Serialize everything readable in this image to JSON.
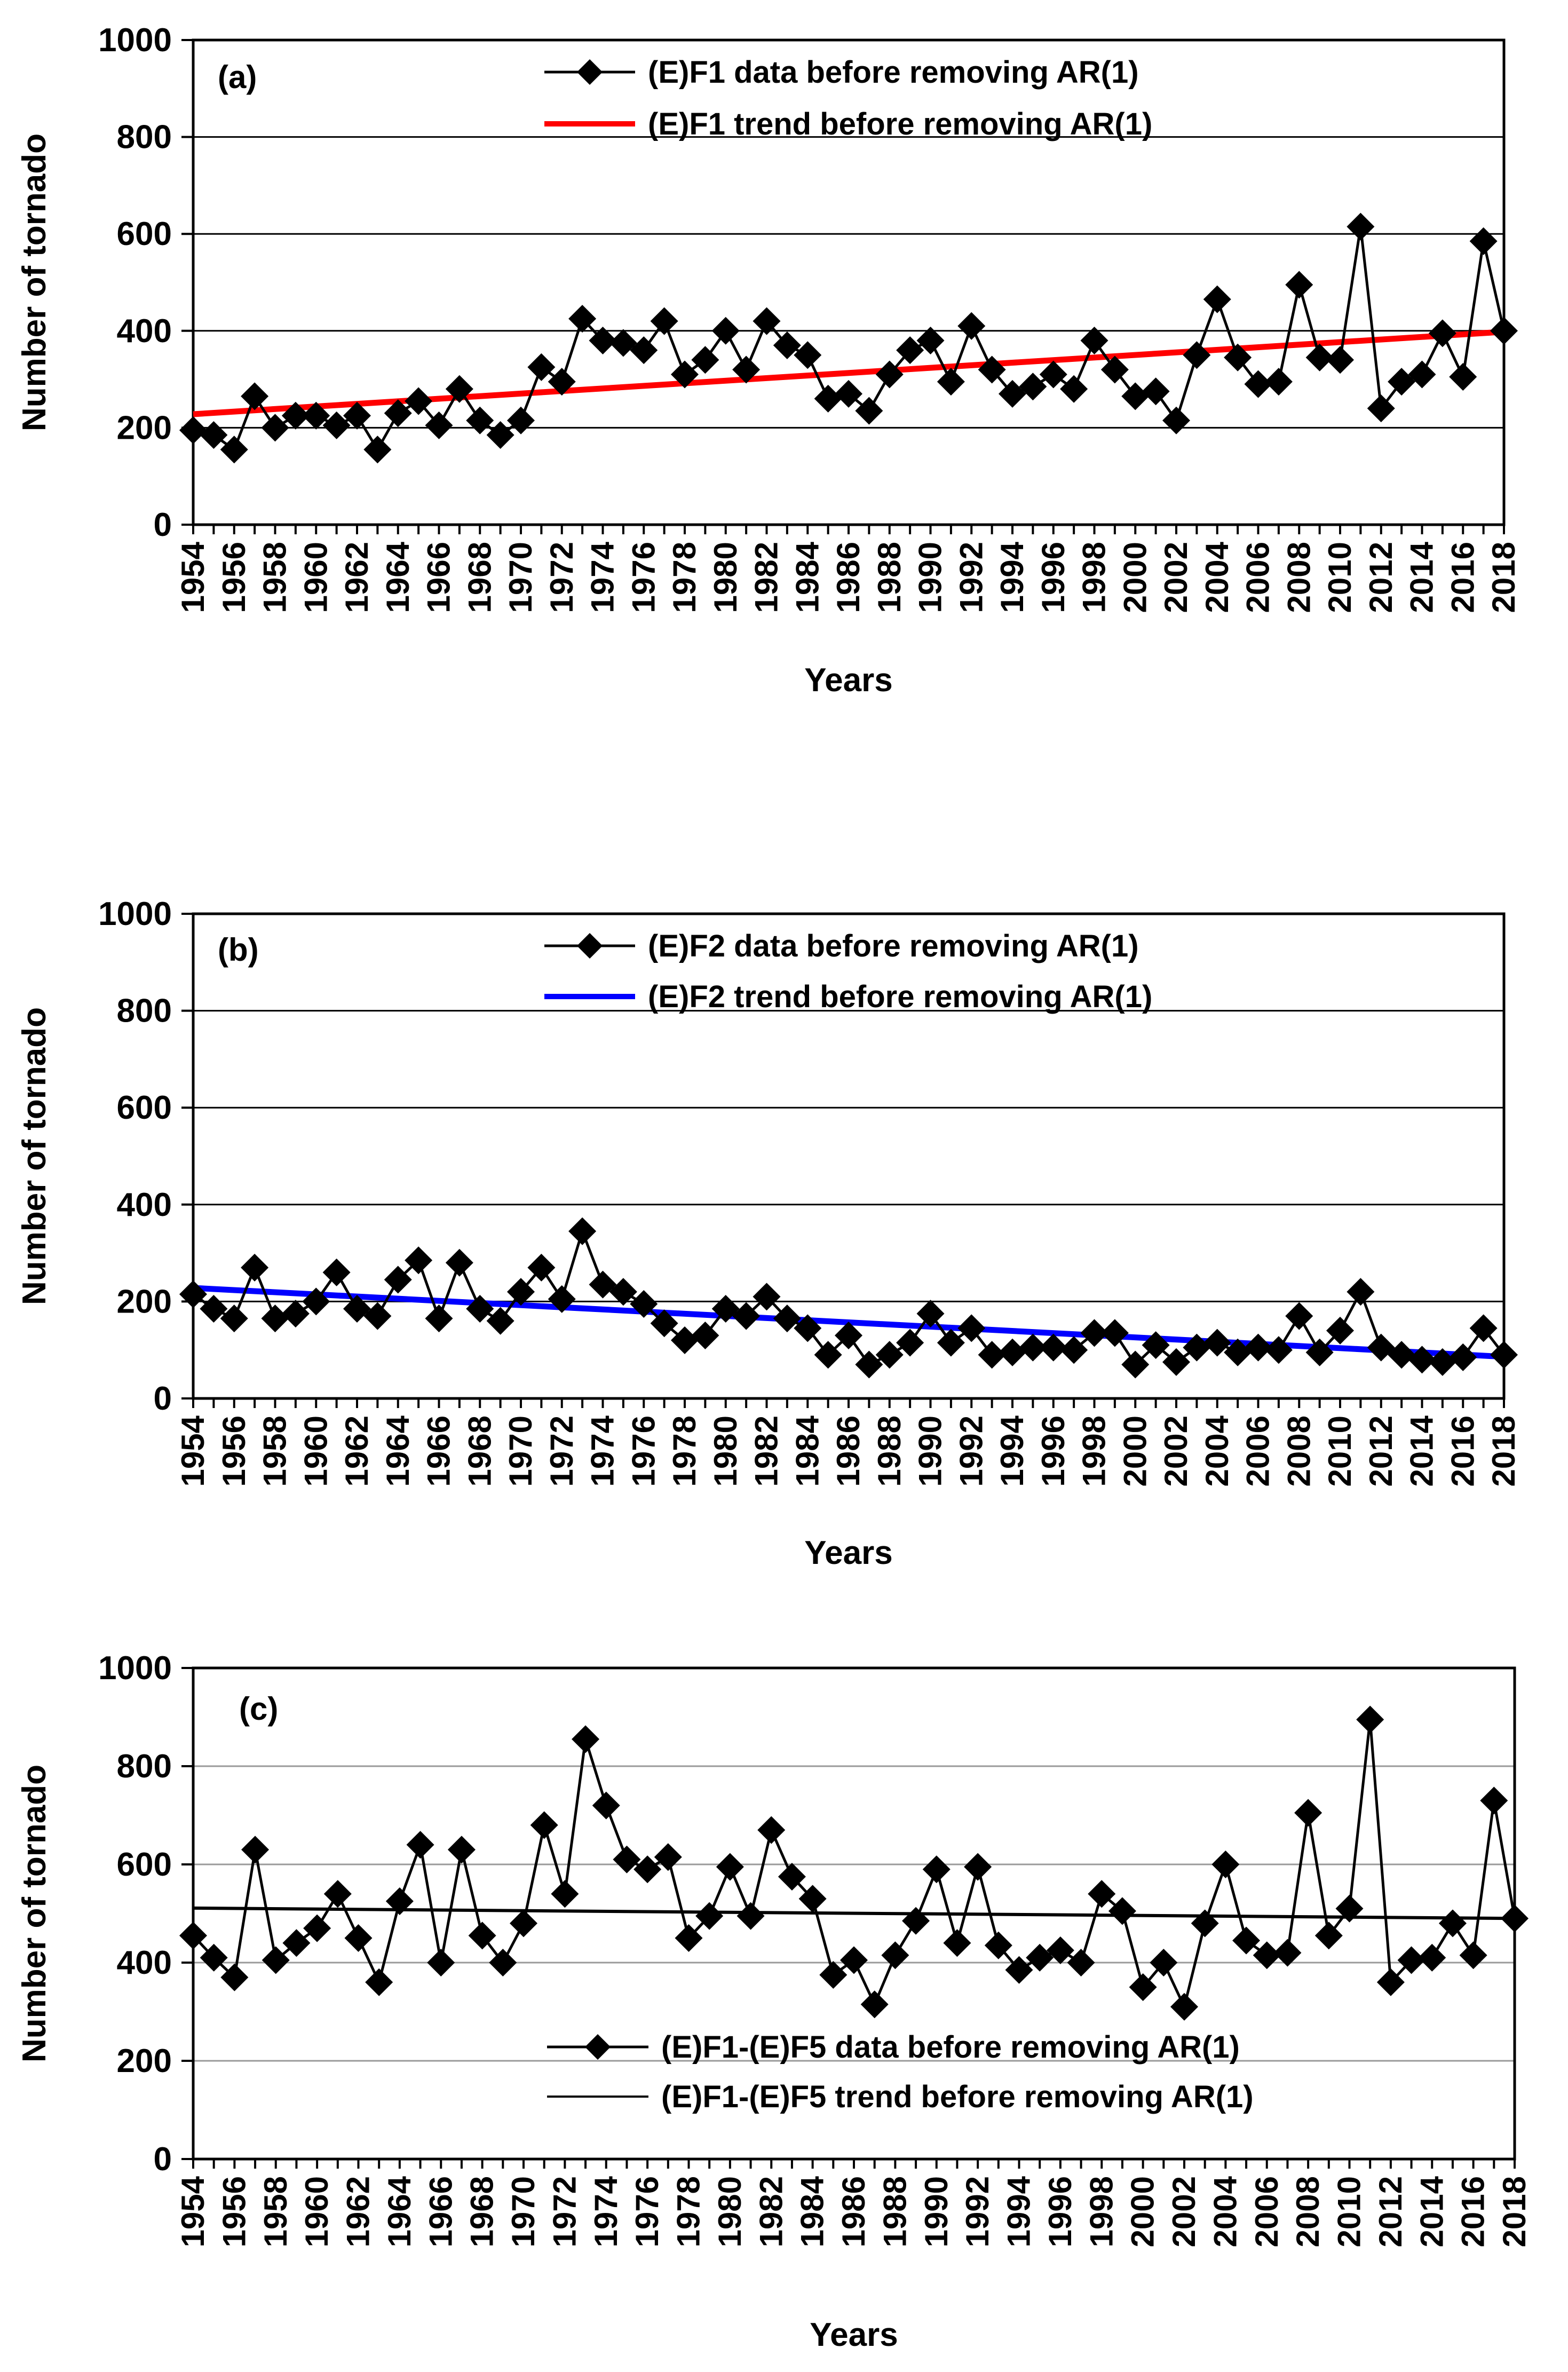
{
  "chart_data": [
    {
      "type": "line",
      "panel_label": "(a)",
      "xlabel": "Years",
      "ylabel": "Number of tornado",
      "ylim": [
        0,
        1000
      ],
      "yticks": [
        0,
        200,
        400,
        600,
        800,
        1000
      ],
      "legend_position": "top-center",
      "x": [
        1954,
        1955,
        1956,
        1957,
        1958,
        1959,
        1960,
        1961,
        1962,
        1963,
        1964,
        1965,
        1966,
        1967,
        1968,
        1969,
        1970,
        1971,
        1972,
        1973,
        1974,
        1975,
        1976,
        1977,
        1978,
        1979,
        1980,
        1981,
        1982,
        1983,
        1984,
        1985,
        1986,
        1987,
        1988,
        1989,
        1990,
        1991,
        1992,
        1993,
        1994,
        1995,
        1996,
        1997,
        1998,
        1999,
        2000,
        2001,
        2002,
        2003,
        2004,
        2005,
        2006,
        2007,
        2008,
        2009,
        2010,
        2011,
        2012,
        2013,
        2014,
        2015,
        2016,
        2017,
        2018
      ],
      "xticks": [
        "1954",
        "1956",
        "1958",
        "1960",
        "1962",
        "1964",
        "1966",
        "1968",
        "1970",
        "1972",
        "1974",
        "1976",
        "1978",
        "1980",
        "1982",
        "1984",
        "1986",
        "1988",
        "1990",
        "1992",
        "1994",
        "1996",
        "1998",
        "2000",
        "2002",
        "2004",
        "2006",
        "2008",
        "2010",
        "2012",
        "2014",
        "2016",
        "2018"
      ],
      "series": [
        {
          "name": "(E)F1 data before removing AR(1)",
          "kind": "data",
          "color": "#000000",
          "values": [
            195,
            185,
            155,
            265,
            200,
            225,
            225,
            205,
            225,
            155,
            230,
            255,
            205,
            280,
            215,
            185,
            215,
            325,
            295,
            425,
            380,
            375,
            360,
            420,
            310,
            340,
            400,
            320,
            420,
            370,
            350,
            260,
            270,
            235,
            310,
            360,
            380,
            295,
            410,
            320,
            270,
            285,
            310,
            280,
            380,
            320,
            265,
            275,
            215,
            350,
            465,
            345,
            290,
            295,
            495,
            345,
            340,
            615,
            240,
            295,
            310,
            395,
            305,
            585,
            400
          ]
        },
        {
          "name": "(E)F1 trend before removing AR(1)",
          "kind": "trend",
          "color": "#ff0000",
          "start": 228,
          "end": 398
        }
      ]
    },
    {
      "type": "line",
      "panel_label": "(b)",
      "xlabel": "Years",
      "ylabel": "Number of tornado",
      "ylim": [
        0,
        1000
      ],
      "yticks": [
        0,
        200,
        400,
        600,
        800,
        1000
      ],
      "legend_position": "top-center",
      "x": [
        1954,
        1955,
        1956,
        1957,
        1958,
        1959,
        1960,
        1961,
        1962,
        1963,
        1964,
        1965,
        1966,
        1967,
        1968,
        1969,
        1970,
        1971,
        1972,
        1973,
        1974,
        1975,
        1976,
        1977,
        1978,
        1979,
        1980,
        1981,
        1982,
        1983,
        1984,
        1985,
        1986,
        1987,
        1988,
        1989,
        1990,
        1991,
        1992,
        1993,
        1994,
        1995,
        1996,
        1997,
        1998,
        1999,
        2000,
        2001,
        2002,
        2003,
        2004,
        2005,
        2006,
        2007,
        2008,
        2009,
        2010,
        2011,
        2012,
        2013,
        2014,
        2015,
        2016,
        2017,
        2018
      ],
      "xticks": [
        "1954",
        "1956",
        "1958",
        "1960",
        "1962",
        "1964",
        "1966",
        "1968",
        "1970",
        "1972",
        "1974",
        "1976",
        "1978",
        "1980",
        "1982",
        "1984",
        "1986",
        "1988",
        "1990",
        "1992",
        "1994",
        "1996",
        "1998",
        "2000",
        "2002",
        "2004",
        "2006",
        "2008",
        "2010",
        "2012",
        "2014",
        "2016",
        "2018"
      ],
      "series": [
        {
          "name": "(E)F2 data before removing AR(1)",
          "kind": "data",
          "color": "#000000",
          "values": [
            215,
            185,
            165,
            270,
            165,
            175,
            200,
            260,
            185,
            170,
            245,
            285,
            165,
            280,
            185,
            160,
            220,
            270,
            205,
            345,
            235,
            220,
            195,
            155,
            120,
            130,
            185,
            170,
            210,
            165,
            145,
            90,
            130,
            70,
            90,
            115,
            175,
            115,
            145,
            90,
            95,
            105,
            105,
            100,
            135,
            135,
            70,
            110,
            75,
            105,
            115,
            95,
            105,
            100,
            170,
            95,
            140,
            220,
            105,
            90,
            80,
            75,
            85,
            145,
            90
          ]
        },
        {
          "name": "(E)F2 trend before removing AR(1)",
          "kind": "trend",
          "color": "#0000ff",
          "start": 228,
          "end": 86
        }
      ]
    },
    {
      "type": "line",
      "panel_label": "(c)",
      "xlabel": "Years",
      "ylabel": "Number of tornado",
      "ylim": [
        0,
        1000
      ],
      "yticks": [
        0,
        200,
        400,
        600,
        800,
        1000
      ],
      "legend_position": "bottom-center",
      "x": [
        1954,
        1955,
        1956,
        1957,
        1958,
        1959,
        1960,
        1961,
        1962,
        1963,
        1964,
        1965,
        1966,
        1967,
        1968,
        1969,
        1970,
        1971,
        1972,
        1973,
        1974,
        1975,
        1976,
        1977,
        1978,
        1979,
        1980,
        1981,
        1982,
        1983,
        1984,
        1985,
        1986,
        1987,
        1988,
        1989,
        1990,
        1991,
        1992,
        1993,
        1994,
        1995,
        1996,
        1997,
        1998,
        1999,
        2000,
        2001,
        2002,
        2003,
        2004,
        2005,
        2006,
        2007,
        2008,
        2009,
        2010,
        2011,
        2012,
        2013,
        2014,
        2015,
        2016,
        2017,
        2018
      ],
      "xticks": [
        "1954",
        "1956",
        "1958",
        "1960",
        "1962",
        "1964",
        "1966",
        "1968",
        "1970",
        "1972",
        "1974",
        "1976",
        "1978",
        "1980",
        "1982",
        "1984",
        "1986",
        "1988",
        "1990",
        "1992",
        "1994",
        "1996",
        "1998",
        "2000",
        "2002",
        "2004",
        "2006",
        "2008",
        "2010",
        "2012",
        "2014",
        "2016",
        "2018"
      ],
      "series": [
        {
          "name": "(E)F1-(E)F5 data before removing AR(1)",
          "kind": "data",
          "color": "#000000",
          "values": [
            455,
            410,
            370,
            630,
            405,
            440,
            470,
            540,
            450,
            360,
            525,
            640,
            400,
            630,
            455,
            400,
            480,
            680,
            540,
            855,
            720,
            610,
            590,
            615,
            450,
            495,
            595,
            495,
            670,
            575,
            530,
            375,
            405,
            315,
            415,
            485,
            590,
            440,
            595,
            435,
            385,
            410,
            425,
            400,
            540,
            505,
            350,
            400,
            310,
            480,
            600,
            445,
            415,
            420,
            705,
            455,
            510,
            895,
            360,
            405,
            410,
            480,
            415,
            730,
            490
          ]
        },
        {
          "name": "(E)F1-(E)F5 trend before removing AR(1)",
          "kind": "trend",
          "color": "#000000",
          "start": 511,
          "end": 490
        }
      ]
    }
  ]
}
